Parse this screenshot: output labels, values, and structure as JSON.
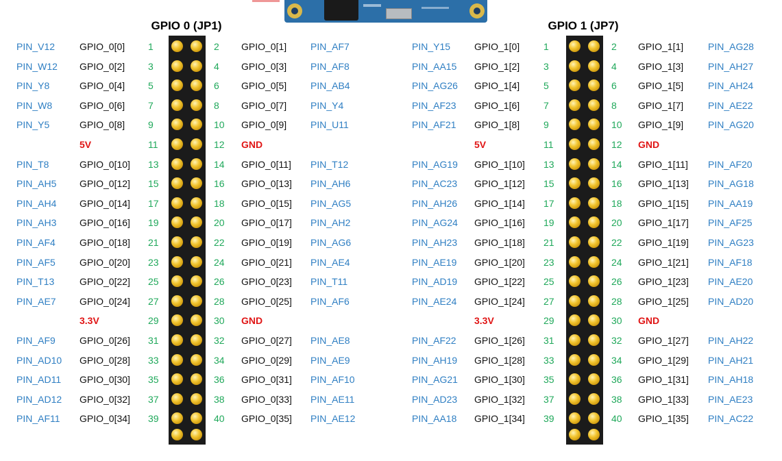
{
  "headers": [
    {
      "title": "GPIO 0 (JP1)"
    },
    {
      "title": "GPIO 1 (JP7)"
    }
  ],
  "colors": {
    "fpga_pin": "#2f7fc3",
    "gpio_signal": "#111111",
    "pin_number": "#1fa85a",
    "power": "#e01515",
    "header_body": "#1b1b1b",
    "pin_gold": "#f2c530"
  },
  "connectors": [
    {
      "title": "GPIO 0 (JP1)",
      "rows": [
        {
          "left_pin": "PIN_V12",
          "left_signal": "GPIO_0[0]",
          "left_num": "1",
          "right_num": "2",
          "right_signal": "GPIO_0[1]",
          "right_pin": "PIN_AF7"
        },
        {
          "left_pin": "PIN_W12",
          "left_signal": "GPIO_0[2]",
          "left_num": "3",
          "right_num": "4",
          "right_signal": "GPIO_0[3]",
          "right_pin": "PIN_AF8"
        },
        {
          "left_pin": "PIN_Y8",
          "left_signal": "GPIO_0[4]",
          "left_num": "5",
          "right_num": "6",
          "right_signal": "GPIO_0[5]",
          "right_pin": "PIN_AB4"
        },
        {
          "left_pin": "PIN_W8",
          "left_signal": "GPIO_0[6]",
          "left_num": "7",
          "right_num": "8",
          "right_signal": "GPIO_0[7]",
          "right_pin": "PIN_Y4"
        },
        {
          "left_pin": "PIN_Y5",
          "left_signal": "GPIO_0[8]",
          "left_num": "9",
          "right_num": "10",
          "right_signal": "GPIO_0[9]",
          "right_pin": "PIN_U11"
        },
        {
          "left_pin": "",
          "left_signal": "5V",
          "left_num": "11",
          "right_num": "12",
          "right_signal": "GND",
          "right_pin": "",
          "power": true
        },
        {
          "left_pin": "PIN_T8",
          "left_signal": "GPIO_0[10]",
          "left_num": "13",
          "right_num": "14",
          "right_signal": "GPIO_0[11]",
          "right_pin": "PIN_T12"
        },
        {
          "left_pin": "PIN_AH5",
          "left_signal": "GPIO_0[12]",
          "left_num": "15",
          "right_num": "16",
          "right_signal": "GPIO_0[13]",
          "right_pin": "PIN_AH6"
        },
        {
          "left_pin": "PIN_AH4",
          "left_signal": "GPIO_0[14]",
          "left_num": "17",
          "right_num": "18",
          "right_signal": "GPIO_0[15]",
          "right_pin": "PIN_AG5"
        },
        {
          "left_pin": "PIN_AH3",
          "left_signal": "GPIO_0[16]",
          "left_num": "19",
          "right_num": "20",
          "right_signal": "GPIO_0[17]",
          "right_pin": "PIN_AH2"
        },
        {
          "left_pin": "PIN_AF4",
          "left_signal": "GPIO_0[18]",
          "left_num": "21",
          "right_num": "22",
          "right_signal": "GPIO_0[19]",
          "right_pin": "PIN_AG6"
        },
        {
          "left_pin": "PIN_AF5",
          "left_signal": "GPIO_0[20]",
          "left_num": "23",
          "right_num": "24",
          "right_signal": "GPIO_0[21]",
          "right_pin": "PIN_AE4"
        },
        {
          "left_pin": "PIN_T13",
          "left_signal": "GPIO_0[22]",
          "left_num": "25",
          "right_num": "26",
          "right_signal": "GPIO_0[23]",
          "right_pin": "PIN_T11"
        },
        {
          "left_pin": "PIN_AE7",
          "left_signal": "GPIO_0[24]",
          "left_num": "27",
          "right_num": "28",
          "right_signal": "GPIO_0[25]",
          "right_pin": "PIN_AF6"
        },
        {
          "left_pin": "",
          "left_signal": "3.3V",
          "left_num": "29",
          "right_num": "30",
          "right_signal": "GND",
          "right_pin": "",
          "power": true
        },
        {
          "left_pin": "PIN_AF9",
          "left_signal": "GPIO_0[26]",
          "left_num": "31",
          "right_num": "32",
          "right_signal": "GPIO_0[27]",
          "right_pin": "PIN_AE8"
        },
        {
          "left_pin": "PIN_AD10",
          "left_signal": "GPIO_0[28]",
          "left_num": "33",
          "right_num": "34",
          "right_signal": "GPIO_0[29]",
          "right_pin": "PIN_AE9"
        },
        {
          "left_pin": "PIN_AD11",
          "left_signal": "GPIO_0[30]",
          "left_num": "35",
          "right_num": "36",
          "right_signal": "GPIO_0[31]",
          "right_pin": "PIN_AF10"
        },
        {
          "left_pin": "PIN_AD12",
          "left_signal": "GPIO_0[32]",
          "left_num": "37",
          "right_num": "38",
          "right_signal": "GPIO_0[33]",
          "right_pin": "PIN_AE11"
        },
        {
          "left_pin": "PIN_AF11",
          "left_signal": "GPIO_0[34]",
          "left_num": "39",
          "right_num": "40",
          "right_signal": "GPIO_0[35]",
          "right_pin": "PIN_AE12"
        }
      ]
    },
    {
      "title": "GPIO 1 (JP7)",
      "rows": [
        {
          "left_pin": "PIN_Y15",
          "left_signal": "GPIO_1[0]",
          "left_num": "1",
          "right_num": "2",
          "right_signal": "GPIO_1[1]",
          "right_pin": "PIN_AG28"
        },
        {
          "left_pin": "PIN_AA15",
          "left_signal": "GPIO_1[2]",
          "left_num": "3",
          "right_num": "4",
          "right_signal": "GPIO_1[3]",
          "right_pin": "PIN_AH27"
        },
        {
          "left_pin": "PIN_AG26",
          "left_signal": "GPIO_1[4]",
          "left_num": "5",
          "right_num": "6",
          "right_signal": "GPIO_1[5]",
          "right_pin": "PIN_AH24"
        },
        {
          "left_pin": "PIN_AF23",
          "left_signal": "GPIO_1[6]",
          "left_num": "7",
          "right_num": "8",
          "right_signal": "GPIO_1[7]",
          "right_pin": "PIN_AE22"
        },
        {
          "left_pin": "PIN_AF21",
          "left_signal": "GPIO_1[8]",
          "left_num": "9",
          "right_num": "10",
          "right_signal": "GPIO_1[9]",
          "right_pin": "PIN_AG20"
        },
        {
          "left_pin": "",
          "left_signal": "5V",
          "left_num": "11",
          "right_num": "12",
          "right_signal": "GND",
          "right_pin": "",
          "power": true
        },
        {
          "left_pin": "PIN_AG19",
          "left_signal": "GPIO_1[10]",
          "left_num": "13",
          "right_num": "14",
          "right_signal": "GPIO_1[11]",
          "right_pin": "PIN_AF20"
        },
        {
          "left_pin": "PIN_AC23",
          "left_signal": "GPIO_1[12]",
          "left_num": "15",
          "right_num": "16",
          "right_signal": "GPIO_1[13]",
          "right_pin": "PIN_AG18"
        },
        {
          "left_pin": "PIN_AH26",
          "left_signal": "GPIO_1[14]",
          "left_num": "17",
          "right_num": "18",
          "right_signal": "GPIO_1[15]",
          "right_pin": "PIN_AA19"
        },
        {
          "left_pin": "PIN_AG24",
          "left_signal": "GPIO_1[16]",
          "left_num": "19",
          "right_num": "20",
          "right_signal": "GPIO_1[17]",
          "right_pin": "PIN_AF25"
        },
        {
          "left_pin": "PIN_AH23",
          "left_signal": "GPIO_1[18]",
          "left_num": "21",
          "right_num": "22",
          "right_signal": "GPIO_1[19]",
          "right_pin": "PIN_AG23"
        },
        {
          "left_pin": "PIN_AE19",
          "left_signal": "GPIO_1[20]",
          "left_num": "23",
          "right_num": "24",
          "right_signal": "GPIO_1[21]",
          "right_pin": "PIN_AF18"
        },
        {
          "left_pin": "PIN_AD19",
          "left_signal": "GPIO_1[22]",
          "left_num": "25",
          "right_num": "26",
          "right_signal": "GPIO_1[23]",
          "right_pin": "PIN_AE20"
        },
        {
          "left_pin": "PIN_AE24",
          "left_signal": "GPIO_1[24]",
          "left_num": "27",
          "right_num": "28",
          "right_signal": "GPIO_1[25]",
          "right_pin": "PIN_AD20"
        },
        {
          "left_pin": "",
          "left_signal": "3.3V",
          "left_num": "29",
          "right_num": "30",
          "right_signal": "GND",
          "right_pin": "",
          "power": true
        },
        {
          "left_pin": "PIN_AF22",
          "left_signal": "GPIO_1[26]",
          "left_num": "31",
          "right_num": "32",
          "right_signal": "GPIO_1[27]",
          "right_pin": "PIN_AH22"
        },
        {
          "left_pin": "PIN_AH19",
          "left_signal": "GPIO_1[28]",
          "left_num": "33",
          "right_num": "34",
          "right_signal": "GPIO_1[29]",
          "right_pin": "PIN_AH21"
        },
        {
          "left_pin": "PIN_AG21",
          "left_signal": "GPIO_1[30]",
          "left_num": "35",
          "right_num": "36",
          "right_signal": "GPIO_1[31]",
          "right_pin": "PIN_AH18"
        },
        {
          "left_pin": "PIN_AD23",
          "left_signal": "GPIO_1[32]",
          "left_num": "37",
          "right_num": "38",
          "right_signal": "GPIO_1[33]",
          "right_pin": "PIN_AE23"
        },
        {
          "left_pin": "PIN_AA18",
          "left_signal": "GPIO_1[34]",
          "left_num": "39",
          "right_num": "40",
          "right_signal": "GPIO_1[35]",
          "right_pin": "PIN_AC22"
        }
      ]
    }
  ]
}
